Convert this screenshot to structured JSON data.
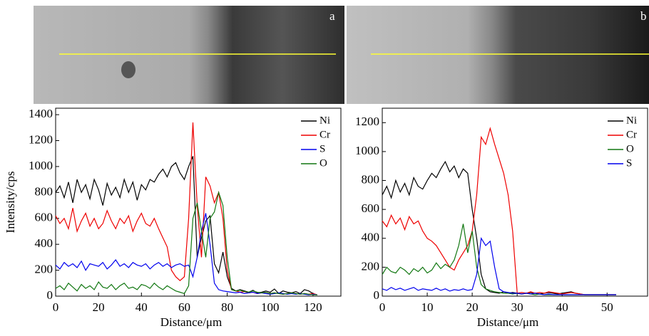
{
  "chart_data": [
    {
      "type": "line",
      "panel_label": "a",
      "xlabel": "Distance/μm",
      "ylabel": "Intensity/cps",
      "xlim": [
        0,
        133
      ],
      "ylim": [
        0,
        1450
      ],
      "xticks": [
        0,
        20,
        40,
        60,
        80,
        100,
        120
      ],
      "yticks": [
        0,
        200,
        400,
        600,
        800,
        1000,
        1200,
        1400
      ],
      "legend": "upper right",
      "x": [
        0,
        2,
        4,
        6,
        8,
        10,
        12,
        14,
        16,
        18,
        20,
        22,
        24,
        26,
        28,
        30,
        32,
        34,
        36,
        38,
        40,
        42,
        44,
        46,
        48,
        50,
        52,
        54,
        56,
        58,
        60,
        62,
        64,
        66,
        68,
        70,
        72,
        74,
        76,
        78,
        80,
        82,
        84,
        86,
        88,
        90,
        92,
        94,
        96,
        98,
        100,
        102,
        104,
        106,
        108,
        110,
        112,
        114,
        116,
        118,
        120,
        122
      ],
      "series": [
        {
          "name": "Ni",
          "color": "#000000",
          "values": [
            800,
            850,
            760,
            880,
            720,
            900,
            800,
            860,
            750,
            900,
            820,
            700,
            870,
            780,
            840,
            760,
            900,
            800,
            880,
            740,
            860,
            820,
            900,
            880,
            940,
            980,
            920,
            1000,
            1030,
            950,
            900,
            1000,
            1080,
            300,
            450,
            580,
            620,
            250,
            180,
            340,
            150,
            60,
            40,
            50,
            40,
            30,
            45,
            25,
            30,
            40,
            30,
            55,
            20,
            40,
            30,
            25,
            35,
            20,
            50,
            40,
            20,
            10
          ]
        },
        {
          "name": "Cr",
          "color": "#ee0000",
          "values": [
            620,
            560,
            600,
            520,
            680,
            500,
            580,
            640,
            540,
            600,
            520,
            560,
            660,
            580,
            520,
            600,
            560,
            620,
            500,
            580,
            640,
            560,
            540,
            600,
            520,
            450,
            380,
            200,
            150,
            120,
            150,
            600,
            1340,
            700,
            300,
            920,
            850,
            720,
            800,
            600,
            200,
            50,
            40,
            30,
            35,
            25,
            30,
            20,
            25,
            30,
            20,
            25,
            20,
            15,
            20,
            25,
            20,
            15,
            20,
            15,
            20,
            10
          ]
        },
        {
          "name": "S",
          "color": "#0000ee",
          "values": [
            240,
            210,
            260,
            230,
            250,
            220,
            270,
            200,
            250,
            240,
            230,
            260,
            210,
            240,
            280,
            230,
            250,
            220,
            260,
            240,
            230,
            250,
            210,
            240,
            260,
            230,
            250,
            220,
            240,
            250,
            230,
            240,
            150,
            300,
            500,
            640,
            400,
            100,
            50,
            40,
            35,
            30,
            25,
            30,
            20,
            25,
            30,
            20,
            25,
            20,
            15,
            20,
            25,
            20,
            15,
            20,
            15,
            20,
            15,
            10,
            15,
            10
          ]
        },
        {
          "name": "O",
          "color": "#117711",
          "values": [
            60,
            80,
            50,
            100,
            70,
            40,
            90,
            60,
            80,
            50,
            110,
            70,
            60,
            90,
            50,
            80,
            100,
            60,
            70,
            50,
            90,
            80,
            60,
            100,
            70,
            50,
            80,
            60,
            40,
            30,
            20,
            80,
            600,
            720,
            500,
            300,
            600,
            650,
            800,
            700,
            300,
            50,
            40,
            45,
            35,
            30,
            40,
            30,
            25,
            30,
            20,
            25,
            20,
            15,
            20,
            25,
            20,
            15,
            20,
            15,
            10,
            10
          ]
        }
      ]
    },
    {
      "type": "line",
      "panel_label": "b",
      "xlabel": "Distance/μm",
      "xlim": [
        0,
        59
      ],
      "ylim": [
        0,
        1300
      ],
      "xticks": [
        0,
        10,
        20,
        30,
        40,
        50
      ],
      "yticks": [
        0,
        200,
        400,
        600,
        800,
        1000,
        1200
      ],
      "legend": "upper right",
      "x": [
        0,
        1,
        2,
        3,
        4,
        5,
        6,
        7,
        8,
        9,
        10,
        11,
        12,
        13,
        14,
        15,
        16,
        17,
        18,
        19,
        20,
        21,
        22,
        23,
        24,
        25,
        26,
        27,
        28,
        29,
        30,
        31,
        32,
        33,
        34,
        35,
        36,
        37,
        38,
        39,
        40,
        41,
        42,
        43,
        44,
        45,
        46,
        47,
        48,
        49,
        50,
        51,
        52
      ],
      "series": [
        {
          "name": "Ni",
          "color": "#000000",
          "values": [
            700,
            760,
            680,
            800,
            720,
            780,
            700,
            820,
            760,
            740,
            800,
            850,
            820,
            880,
            930,
            860,
            900,
            820,
            880,
            850,
            600,
            400,
            150,
            50,
            30,
            25,
            20,
            30,
            20,
            25,
            20,
            15,
            20,
            25,
            20,
            15,
            20,
            25,
            20,
            15,
            20,
            25,
            30,
            20,
            15,
            10,
            10,
            10,
            10,
            10,
            10,
            10,
            10
          ]
        },
        {
          "name": "Cr",
          "color": "#ee0000",
          "values": [
            520,
            480,
            560,
            500,
            540,
            460,
            550,
            500,
            520,
            450,
            400,
            380,
            350,
            300,
            250,
            200,
            180,
            250,
            300,
            350,
            450,
            700,
            1100,
            1050,
            1160,
            1050,
            950,
            850,
            700,
            450,
            20,
            25,
            20,
            30,
            20,
            25,
            20,
            30,
            25,
            20,
            15,
            20,
            25,
            20,
            15,
            10,
            10,
            10,
            10,
            10,
            10,
            10,
            10
          ]
        },
        {
          "name": "O",
          "color": "#117711",
          "values": [
            150,
            200,
            170,
            160,
            200,
            180,
            150,
            190,
            170,
            200,
            160,
            180,
            230,
            190,
            220,
            200,
            250,
            350,
            500,
            300,
            450,
            200,
            80,
            50,
            40,
            30,
            25,
            20,
            20,
            15,
            20,
            15,
            20,
            15,
            10,
            15,
            10,
            10,
            10,
            10,
            10,
            10,
            10,
            10,
            10,
            10,
            10,
            10,
            10,
            10,
            10,
            10,
            10
          ]
        },
        {
          "name": "S",
          "color": "#0000ee",
          "values": [
            50,
            40,
            60,
            45,
            55,
            40,
            50,
            60,
            40,
            50,
            45,
            40,
            55,
            40,
            50,
            35,
            45,
            40,
            50,
            40,
            45,
            150,
            400,
            350,
            380,
            200,
            50,
            30,
            25,
            20,
            20,
            15,
            20,
            15,
            20,
            15,
            10,
            15,
            10,
            10,
            10,
            10,
            10,
            10,
            10,
            10,
            10,
            10,
            10,
            10,
            10,
            10,
            10
          ]
        }
      ]
    }
  ]
}
